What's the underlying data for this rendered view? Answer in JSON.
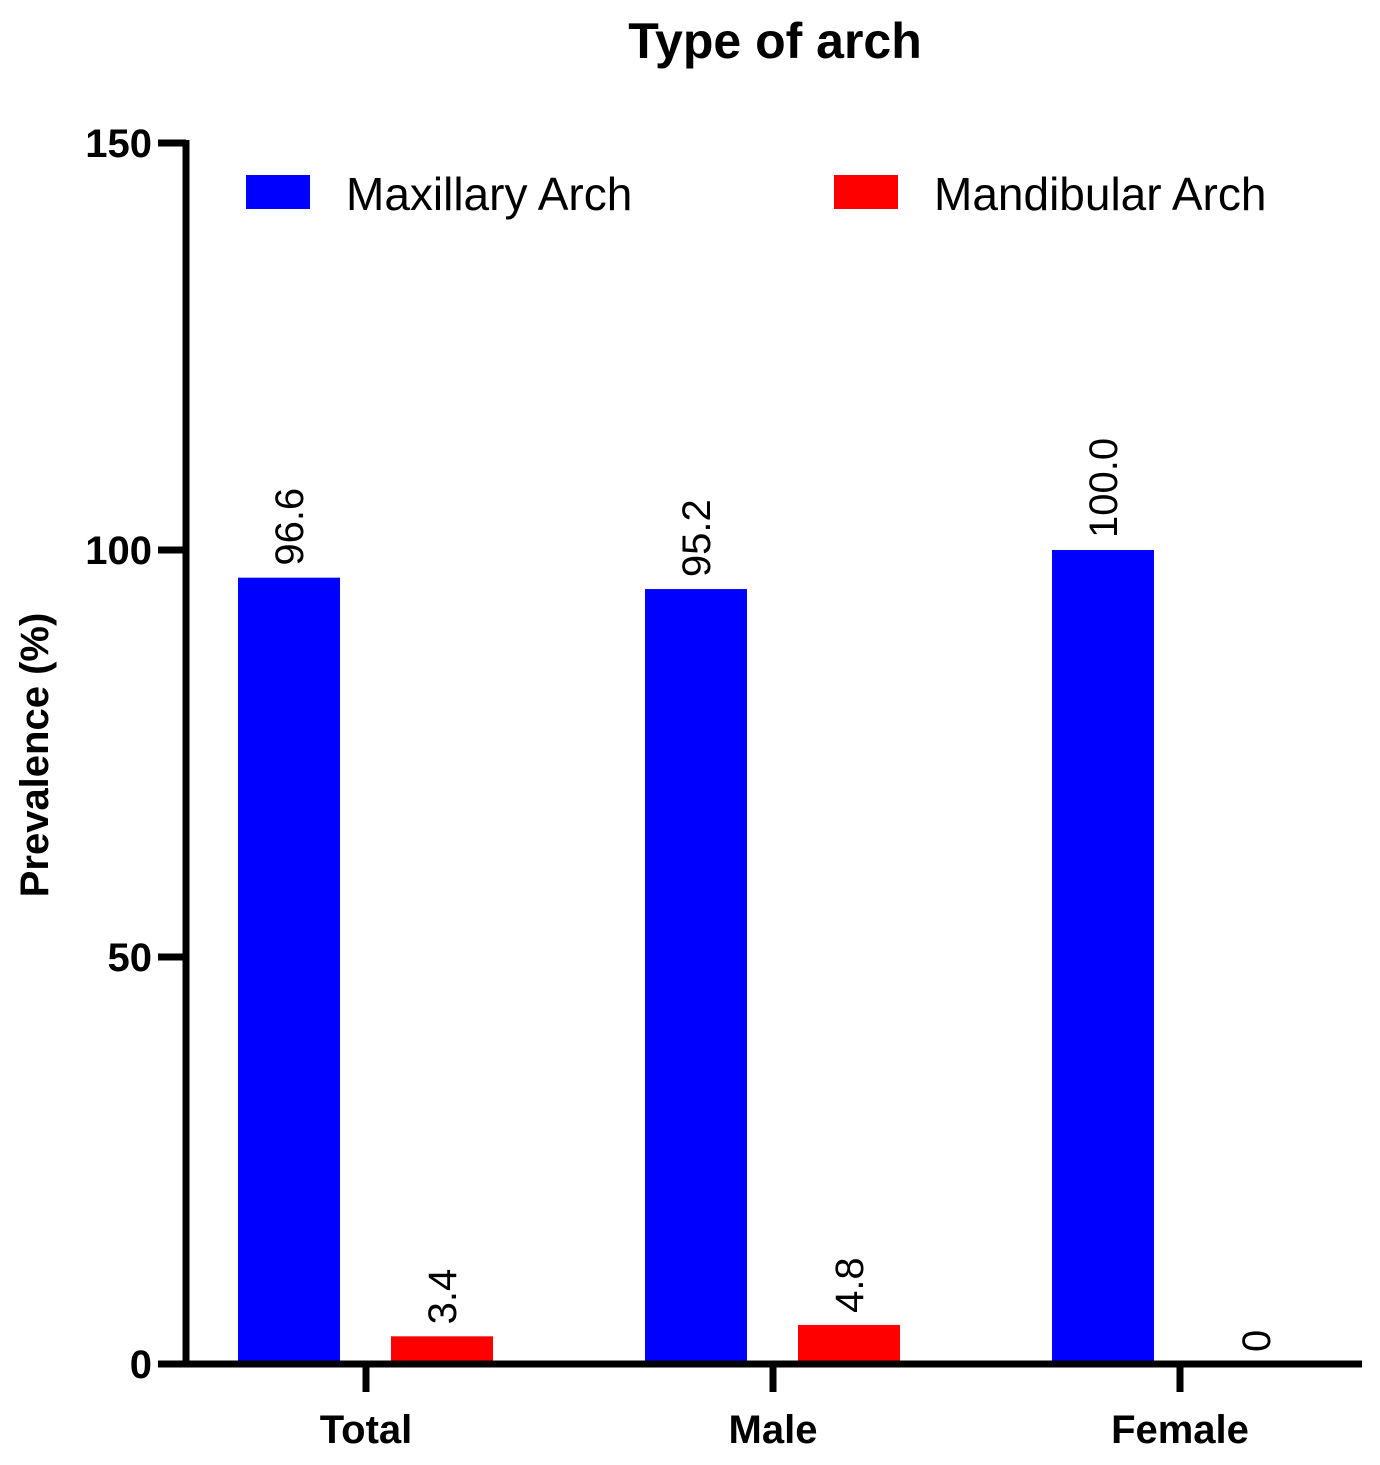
{
  "chart_data": {
    "type": "bar",
    "title": "Type of arch",
    "xlabel": "",
    "ylabel": "Prevalence (%)",
    "ylim": [
      0,
      150
    ],
    "yticks": [
      0,
      50,
      100,
      150
    ],
    "categories": [
      "Total",
      "Male",
      "Female"
    ],
    "series": [
      {
        "name": "Maxillary Arch",
        "color": "#0000ff",
        "values": [
          96.6,
          95.2,
          100.0
        ],
        "labels": [
          "96.6",
          "95.2",
          "100.0"
        ]
      },
      {
        "name": "Mandibular Arch",
        "color": "#ff0000",
        "values": [
          3.4,
          4.8,
          0
        ],
        "labels": [
          "3.4",
          "4.8",
          "0"
        ]
      }
    ],
    "legend_position": "top",
    "grid": false,
    "data_label_orientation": "vertical"
  }
}
